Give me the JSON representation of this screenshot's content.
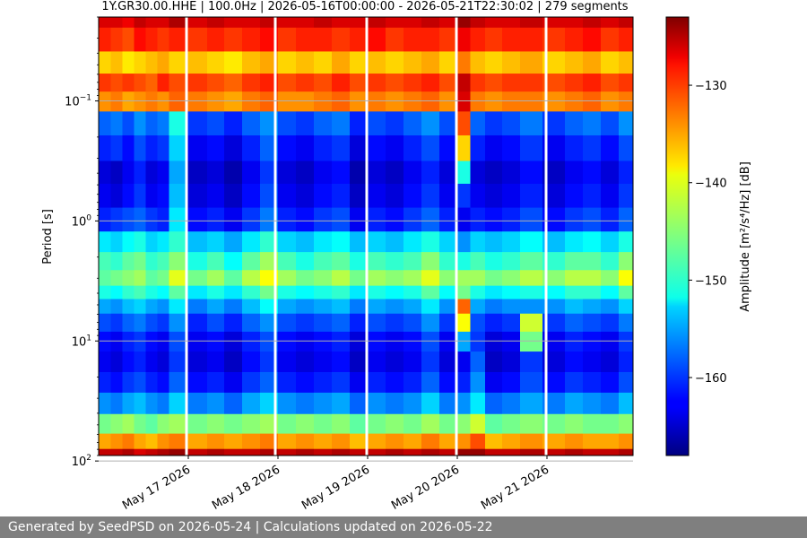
{
  "chart_data": {
    "type": "heatmap",
    "title": "1Y.GR30.00.HHE | 100.0Hz | 2026-05-16T00:00:00 - 2026-05-21T22:30:02 | 279 segments",
    "ylabel": "Period [s]",
    "colorbar_label": "Amplitude [m²/s⁴/Hz] [dB]",
    "colorbar_ticks": [
      -130,
      -140,
      -150,
      -160
    ],
    "colorbar_range": [
      -168,
      -123
    ],
    "colormap": "jet",
    "y_scale": "log",
    "y_range": [
      0.02,
      90
    ],
    "y_ticks": [
      {
        "value": 0.1,
        "base": "10",
        "exp": "−1"
      },
      {
        "value": 1,
        "base": "10",
        "exp": "0"
      },
      {
        "value": 10,
        "base": "10",
        "exp": "1"
      },
      {
        "value": 100,
        "base": "10",
        "exp": "2"
      }
    ],
    "x_range_days": [
      0,
      5.96
    ],
    "x_ticks": [
      {
        "day": 1,
        "label": "May 17 2026"
      },
      {
        "day": 2,
        "label": "May 18 2026"
      },
      {
        "day": 3,
        "label": "May 19 2026"
      },
      {
        "day": 4,
        "label": "May 20 2026"
      },
      {
        "day": 5,
        "label": "May 21 2026"
      }
    ],
    "gaps_days": [
      0.98,
      1.97,
      2.99,
      3.99,
      4.99
    ],
    "grid": true,
    "columns_x": [
      0.07,
      0.2,
      0.33,
      0.46,
      0.59,
      0.72,
      0.85,
      1.12,
      1.3,
      1.5,
      1.7,
      1.9,
      2.1,
      2.3,
      2.5,
      2.7,
      2.9,
      3.1,
      3.3,
      3.5,
      3.7,
      3.9,
      4.07,
      4.22,
      4.4,
      4.6,
      4.8,
      5.1,
      5.3,
      5.5,
      5.7,
      5.9
    ],
    "period_rows": [
      0.02,
      0.03,
      0.05,
      0.07,
      0.1,
      0.15,
      0.25,
      0.4,
      0.6,
      1,
      1.5,
      2.2,
      3,
      4,
      5,
      7,
      10,
      15,
      22,
      33,
      50,
      70,
      90
    ],
    "amplitude_rows_db": [
      [
        -127,
        -130,
        -138,
        -131,
        -135,
        -158,
        -161,
        -164,
        -163,
        -161,
        -152,
        -148,
        -147,
        -150,
        -155,
        -159,
        -162,
        -163,
        -161,
        -156,
        -146,
        -136,
        -126
      ],
      [
        -127,
        -131,
        -137,
        -132,
        -134,
        -157,
        -160,
        -165,
        -164,
        -160,
        -153,
        -149,
        -146,
        -151,
        -156,
        -160,
        -163,
        -164,
        -162,
        -157,
        -145,
        -135,
        -126
      ],
      [
        -128,
        -132,
        -139,
        -131,
        -136,
        -159,
        -162,
        -163,
        -162,
        -159,
        -151,
        -147,
        -145,
        -149,
        -154,
        -158,
        -161,
        -162,
        -160,
        -155,
        -144,
        -134,
        -125
      ],
      [
        -126,
        -129,
        -138,
        -132,
        -135,
        -156,
        -159,
        -161,
        -160,
        -158,
        -150,
        -146,
        -144,
        -148,
        -153,
        -157,
        -160,
        -161,
        -159,
        -154,
        -146,
        -136,
        -127
      ],
      [
        -127,
        -130,
        -137,
        -133,
        -134,
        -158,
        -161,
        -164,
        -163,
        -160,
        -153,
        -149,
        -147,
        -150,
        -155,
        -159,
        -162,
        -163,
        -161,
        -156,
        -147,
        -137,
        -126
      ],
      [
        -127,
        -131,
        -136,
        -130,
        -135,
        -157,
        -160,
        -163,
        -162,
        -161,
        -152,
        -148,
        -146,
        -151,
        -156,
        -160,
        -163,
        -164,
        -162,
        -157,
        -145,
        -135,
        -125
      ],
      [
        -125,
        -130,
        -138,
        -132,
        -133,
        -150,
        -153,
        -155,
        -154,
        -152,
        -149,
        -145,
        -141,
        -147,
        -152,
        -156,
        -159,
        -160,
        -158,
        -153,
        -144,
        -134,
        -124
      ],
      [
        -127,
        -131,
        -137,
        -131,
        -134,
        -160,
        -163,
        -165,
        -164,
        -162,
        -154,
        -150,
        -146,
        -152,
        -157,
        -161,
        -163,
        -164,
        -162,
        -157,
        -146,
        -136,
        -126
      ],
      [
        -126,
        -130,
        -138,
        -132,
        -135,
        -159,
        -162,
        -164,
        -163,
        -161,
        -153,
        -148,
        -144,
        -150,
        -155,
        -159,
        -162,
        -163,
        -161,
        -156,
        -145,
        -135,
        -125
      ],
      [
        -127,
        -131,
        -139,
        -133,
        -136,
        -161,
        -164,
        -166,
        -165,
        -163,
        -155,
        -151,
        -147,
        -152,
        -157,
        -161,
        -164,
        -165,
        -163,
        -158,
        -146,
        -136,
        -126
      ],
      [
        -127,
        -130,
        -137,
        -131,
        -134,
        -158,
        -161,
        -163,
        -162,
        -160,
        -152,
        -147,
        -143,
        -149,
        -154,
        -158,
        -161,
        -162,
        -160,
        -155,
        -145,
        -135,
        -126
      ],
      [
        -126,
        -129,
        -136,
        -130,
        -133,
        -156,
        -158,
        -160,
        -159,
        -157,
        -149,
        -144,
        -140,
        -146,
        -151,
        -156,
        -159,
        -160,
        -158,
        -153,
        -144,
        -134,
        -125
      ],
      [
        -127,
        -131,
        -138,
        -132,
        -135,
        -159,
        -162,
        -164,
        -163,
        -161,
        -153,
        -148,
        -144,
        -150,
        -155,
        -159,
        -162,
        -163,
        -161,
        -156,
        -146,
        -136,
        -126
      ],
      [
        -127,
        -130,
        -137,
        -131,
        -135,
        -160,
        -163,
        -165,
        -164,
        -162,
        -154,
        -150,
        -146,
        -151,
        -156,
        -160,
        -163,
        -164,
        -162,
        -157,
        -145,
        -135,
        -125
      ],
      [
        -126,
        -130,
        -138,
        -132,
        -134,
        -158,
        -161,
        -163,
        -162,
        -160,
        -152,
        -148,
        -145,
        -150,
        -155,
        -159,
        -162,
        -163,
        -161,
        -156,
        -146,
        -136,
        -126
      ],
      [
        -127,
        -131,
        -136,
        -130,
        -133,
        -157,
        -160,
        -162,
        -161,
        -159,
        -151,
        -147,
        -143,
        -149,
        -154,
        -158,
        -161,
        -162,
        -160,
        -155,
        -145,
        -135,
        -125
      ],
      [
        -127,
        -130,
        -138,
        -132,
        -135,
        -161,
        -164,
        -166,
        -165,
        -163,
        -154,
        -150,
        -146,
        -152,
        -157,
        -161,
        -164,
        -165,
        -163,
        -158,
        -147,
        -137,
        -126
      ],
      [
        -126,
        -129,
        -137,
        -131,
        -134,
        -159,
        -162,
        -164,
        -163,
        -161,
        -153,
        -148,
        -144,
        -150,
        -155,
        -159,
        -162,
        -163,
        -161,
        -156,
        -146,
        -136,
        -126
      ],
      [
        -127,
        -131,
        -138,
        -132,
        -135,
        -160,
        -163,
        -165,
        -164,
        -162,
        -154,
        -149,
        -145,
        -151,
        -156,
        -160,
        -163,
        -164,
        -162,
        -157,
        -145,
        -135,
        -125
      ],
      [
        -127,
        -130,
        -137,
        -131,
        -134,
        -158,
        -161,
        -163,
        -162,
        -160,
        -152,
        -148,
        -144,
        -150,
        -155,
        -159,
        -162,
        -163,
        -161,
        -156,
        -146,
        -136,
        -126
      ],
      [
        -126,
        -130,
        -136,
        -130,
        -133,
        -156,
        -159,
        -161,
        -160,
        -158,
        -150,
        -145,
        -141,
        -147,
        -152,
        -156,
        -159,
        -160,
        -158,
        -153,
        -144,
        -134,
        -125
      ],
      [
        -127,
        -131,
        -138,
        -132,
        -135,
        -159,
        -162,
        -164,
        -163,
        -161,
        -153,
        -149,
        -145,
        -151,
        -156,
        -160,
        -163,
        -164,
        -162,
        -157,
        -146,
        -136,
        -126
      ],
      [
        -124,
        -128,
        -134,
        -126,
        -127,
        -132,
        -138,
        -150,
        -160,
        -163,
        -156,
        -150,
        -144,
        -146,
        -133,
        -140,
        -155,
        -163,
        -161,
        -156,
        -145,
        -135,
        -124
      ],
      [
        -126,
        -130,
        -137,
        -131,
        -134,
        -158,
        -161,
        -164,
        -163,
        -161,
        -153,
        -148,
        -144,
        -150,
        -155,
        -159,
        -160,
        -158,
        -156,
        -152,
        -142,
        -132,
        -124
      ],
      [
        -127,
        -131,
        -138,
        -132,
        -135,
        -160,
        -163,
        -165,
        -164,
        -162,
        -154,
        -150,
        -146,
        -152,
        -157,
        -161,
        -164,
        -165,
        -163,
        -158,
        -147,
        -137,
        -126
      ],
      [
        -127,
        -130,
        -137,
        -131,
        -134,
        -159,
        -162,
        -164,
        -163,
        -161,
        -153,
        -149,
        -145,
        -151,
        -156,
        -160,
        -163,
        -164,
        -162,
        -157,
        -146,
        -136,
        -126
      ],
      [
        -126,
        -130,
        -136,
        -131,
        -134,
        -157,
        -160,
        -162,
        -161,
        -159,
        -151,
        -147,
        -143,
        -150,
        -156,
        -142,
        -146,
        -160,
        -159,
        -155,
        -145,
        -135,
        -125
      ],
      [
        -127,
        -131,
        -138,
        -132,
        -135,
        -160,
        -163,
        -165,
        -164,
        -162,
        -154,
        -149,
        -145,
        -151,
        -156,
        -160,
        -163,
        -164,
        -162,
        -157,
        -146,
        -136,
        -126
      ],
      [
        -127,
        -130,
        -137,
        -131,
        -134,
        -158,
        -161,
        -163,
        -162,
        -160,
        -152,
        -147,
        -143,
        -149,
        -154,
        -158,
        -161,
        -162,
        -160,
        -155,
        -145,
        -135,
        -125
      ],
      [
        -126,
        -129,
        -136,
        -130,
        -133,
        -157,
        -160,
        -162,
        -161,
        -159,
        -151,
        -147,
        -143,
        -149,
        -155,
        -159,
        -162,
        -163,
        -161,
        -156,
        -146,
        -136,
        -126
      ],
      [
        -127,
        -131,
        -138,
        -132,
        -135,
        -159,
        -162,
        -164,
        -163,
        -161,
        -153,
        -149,
        -145,
        -151,
        -156,
        -160,
        -163,
        -164,
        -162,
        -157,
        -146,
        -136,
        -126
      ],
      [
        -126,
        -130,
        -137,
        -131,
        -134,
        -156,
        -159,
        -161,
        -160,
        -158,
        -150,
        -145,
        -140,
        -147,
        -153,
        -157,
        -160,
        -161,
        -159,
        -154,
        -145,
        -135,
        -125
      ]
    ]
  },
  "footer": {
    "text": "Generated by SeedPSD on 2026-05-24 | Calculations updated on 2026-05-22"
  }
}
